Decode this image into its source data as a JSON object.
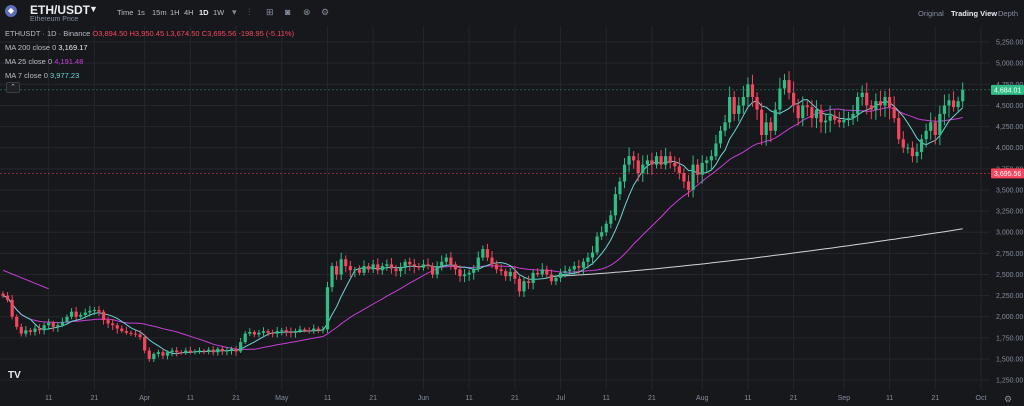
{
  "header": {
    "symbol": "ETH/USDT",
    "subtitle": "Ethereum Price",
    "intervals": [
      "Time",
      "1s",
      "15m",
      "1H",
      "4H",
      "1D",
      "1W"
    ],
    "active_interval": "1D",
    "views": [
      "Original",
      "Trading View",
      "Depth"
    ],
    "active_view": "Trading View"
  },
  "legend": {
    "title": "ETHUSDT · 1D · Binance",
    "ohlc": "O3,894.50 H3,950.45 L3,674.50 C3,695.56 -198.95 (-5.11%)",
    "ma200_label": "MA 200 close 0",
    "ma200_value": "3,169.17",
    "ma25_label": "MA 25 close 0",
    "ma25_value": "4,191.48",
    "ma7_label": "MA 7 close 0",
    "ma7_value": "3,977.23"
  },
  "chart_data": {
    "type": "candlestick",
    "y_ticks": [
      1250,
      1500,
      1750,
      2000,
      2250,
      2500,
      2750,
      3000,
      3250,
      3500,
      3750,
      4000,
      4250,
      4500,
      4750,
      5000,
      5250
    ],
    "y_tick_labels": [
      "1,250.00",
      "1,500.00",
      "1,750.00",
      "2,000.00",
      "2,250.00",
      "2,500.00",
      "2,750.00",
      "3,000.00",
      "3,250.00",
      "3,500.00",
      "3,750.00",
      "4,000.00",
      "4,250.00",
      "4,500.00",
      "4,750.00",
      "5,000.00",
      "5,250.00"
    ],
    "ylim": [
      1130,
      5440
    ],
    "x_labels": [
      "11",
      "21",
      "Apr",
      "11",
      "21",
      "May",
      "11",
      "21",
      "Jun",
      "11",
      "21",
      "Jul",
      "11",
      "21",
      "Aug",
      "11",
      "21",
      "Sep",
      "11",
      "21",
      "Oct"
    ],
    "x_label_day_index": [
      10,
      20,
      31,
      41,
      51,
      61,
      71,
      81,
      92,
      102,
      112,
      122,
      132,
      142,
      153,
      163,
      173,
      184,
      194,
      204,
      214
    ],
    "price_markers": [
      {
        "value": 4684.01,
        "label": "4,684.01",
        "color": "#2ebd85"
      },
      {
        "value": 3695.56,
        "label": "3,695.56",
        "color": "#f6465d"
      }
    ],
    "colors": {
      "up": "#2ebd85",
      "down": "#f6465d",
      "ma200": "#d1d4dc",
      "ma25": "#c53fd5",
      "ma7": "#6fd4d4"
    },
    "closes": [
      2250,
      2200,
      2000,
      1880,
      1800,
      1840,
      1820,
      1860,
      1840,
      1900,
      1930,
      1880,
      1900,
      1940,
      2000,
      2060,
      2000,
      2020,
      2050,
      2070,
      2080,
      2060,
      1960,
      1920,
      1900,
      1860,
      1830,
      1810,
      1800,
      1790,
      1760,
      1600,
      1500,
      1560,
      1580,
      1540,
      1580,
      1600,
      1580,
      1570,
      1600,
      1580,
      1590,
      1600,
      1590,
      1610,
      1580,
      1620,
      1590,
      1600,
      1620,
      1590,
      1700,
      1800,
      1820,
      1790,
      1810,
      1830,
      1810,
      1800,
      1830,
      1840,
      1820,
      1810,
      1830,
      1850,
      1840,
      1830,
      1860,
      1840,
      1850,
      2350,
      2600,
      2500,
      2680,
      2600,
      2550,
      2560,
      2520,
      2600,
      2560,
      2620,
      2550,
      2600,
      2620,
      2570,
      2540,
      2580,
      2650,
      2620,
      2600,
      2580,
      2620,
      2600,
      2500,
      2600,
      2650,
      2700,
      2620,
      2560,
      2480,
      2500,
      2520,
      2560,
      2700,
      2800,
      2700,
      2620,
      2560,
      2540,
      2480,
      2530,
      2450,
      2300,
      2420,
      2400,
      2520,
      2500,
      2560,
      2500,
      2420,
      2460,
      2520,
      2540,
      2560,
      2600,
      2580,
      2650,
      2700,
      2760,
      2950,
      3000,
      3100,
      3200,
      3450,
      3600,
      3800,
      3900,
      3850,
      3700,
      3800,
      3850,
      3800,
      3900,
      3800,
      3900,
      3820,
      3780,
      3700,
      3600,
      3500,
      3800,
      3680,
      3820,
      3850,
      3900,
      4050,
      4200,
      4300,
      4600,
      4400,
      4500,
      4600,
      4750,
      4600,
      4450,
      4150,
      4300,
      4200,
      4450,
      4700,
      4800,
      4650,
      4500,
      4350,
      4500,
      4480,
      4350,
      4450,
      4300,
      4320,
      4380,
      4330,
      4300,
      4330,
      4350,
      4400,
      4600,
      4650,
      4500,
      4450,
      4550,
      4500,
      4600,
      4480,
      4350,
      4100,
      4000,
      4000,
      3900,
      3950,
      4100,
      4200,
      4300,
      4150,
      4400,
      4500,
      4560,
      4480,
      4550,
      4684
    ]
  }
}
